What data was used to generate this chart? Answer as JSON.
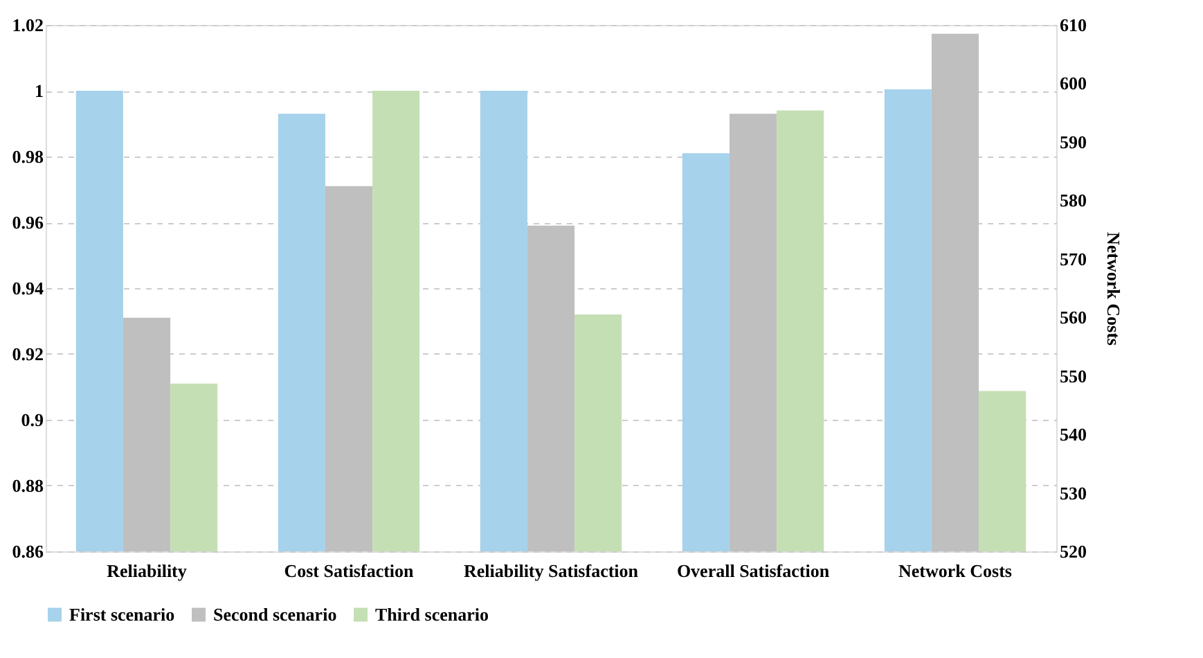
{
  "chart_data": {
    "type": "bar",
    "categories": [
      "Reliability",
      "Cost Satisfaction",
      "Reliability Satisfaction",
      "Overall Satisfaction",
      "Network Costs"
    ],
    "y2label": "Network Costs",
    "series": [
      {
        "name": "First scenario",
        "color": "#a6d2eb",
        "axis": "y",
        "values": [
          1,
          0.993,
          1,
          0.981,
          null
        ]
      },
      {
        "name": "Second scenario",
        "color": "#bfbfbf",
        "axis": "y",
        "values": [
          0.931,
          0.971,
          0.959,
          0.993,
          null
        ]
      },
      {
        "name": "Third scenario",
        "color": "#c5dfb4",
        "axis": "y",
        "values": [
          0.911,
          1,
          0.932,
          0.994,
          null
        ]
      },
      {
        "color": "#a6d2eb",
        "axis": "y2",
        "values": [
          null,
          null,
          null,
          null,
          599
        ]
      },
      {
        "color": "#bfbfbf",
        "axis": "y2",
        "values": [
          null,
          null,
          null,
          null,
          608.5
        ]
      },
      {
        "color": "#c5dfb4",
        "axis": "y2",
        "values": [
          null,
          null,
          null,
          null,
          547.4
        ]
      }
    ],
    "ylim": [
      0.86,
      1.02
    ],
    "yticks": [
      0.86,
      0.88,
      0.9,
      0.92,
      0.94,
      0.96,
      0.98,
      1,
      1.02
    ],
    "y2lim": [
      520,
      610
    ],
    "y2ticks": [
      520,
      530,
      540,
      550,
      560,
      570,
      580,
      590,
      600,
      610
    ],
    "grid": "y",
    "legend": "bottom"
  }
}
